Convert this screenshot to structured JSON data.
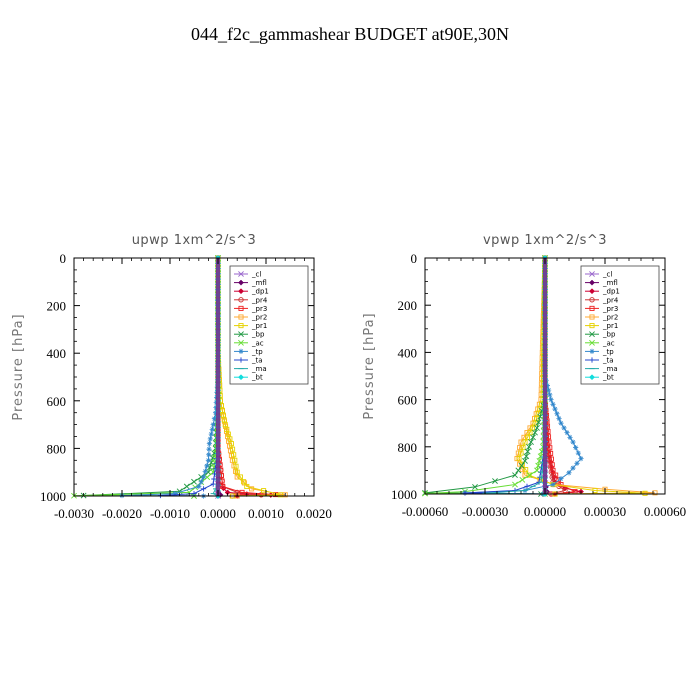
{
  "figure_title": "044_f2c_gammashear  BUDGET at90E,30N",
  "chart_data": [
    {
      "type": "line",
      "title": "upwp   1xm^2/s^3",
      "ylabel": "Pressure  [hPa]",
      "xlim": [
        -0.003,
        0.002
      ],
      "ylim": [
        0,
        1000
      ],
      "y_inverted": true,
      "x_ticks": [
        "-0.0030",
        "-0.0020",
        "-0.0010",
        "0.0000",
        "0.0010",
        "0.0020"
      ],
      "x_tick_values": [
        -0.003,
        -0.002,
        -0.001,
        0.0,
        0.001,
        0.002
      ],
      "y_ticks": [
        "0",
        "200",
        "400",
        "600",
        "800",
        "1000"
      ],
      "y_tick_values": [
        0,
        200,
        400,
        600,
        800,
        1000
      ],
      "legend_position": "upper-right",
      "series": [
        {
          "name": "_cl",
          "color": "#9966cc",
          "marker": "x",
          "points": [
            [
              0.0,
              0
            ],
            [
              0.0,
              200
            ],
            [
              0.0,
              400
            ],
            [
              0.0,
              600
            ],
            [
              0.0,
              800
            ],
            [
              0.0,
              950
            ],
            [
              0.0,
              1000
            ]
          ]
        },
        {
          "name": "_mfl",
          "color": "#660066",
          "marker": "diamond",
          "points": [
            [
              0.0,
              0
            ],
            [
              0.0,
              200
            ],
            [
              0.0,
              400
            ],
            [
              0.0,
              600
            ],
            [
              0.0,
              800
            ],
            [
              0.0,
              950
            ],
            [
              0.0,
              980
            ],
            [
              5e-05,
              995
            ],
            [
              0.0,
              1000
            ]
          ]
        },
        {
          "name": "_dp1",
          "color": "#cc0033",
          "marker": "diamond",
          "points": [
            [
              0.0,
              0
            ],
            [
              0.0,
              400
            ],
            [
              0.0,
              800
            ],
            [
              3e-05,
              950
            ],
            [
              0.0002,
              985
            ],
            [
              0.0006,
              992
            ],
            [
              0.0011,
              996
            ],
            [
              0.0004,
              1000
            ]
          ]
        },
        {
          "name": "_pr4",
          "color": "#cc3333",
          "marker": "circle",
          "points": [
            [
              0.0,
              0
            ],
            [
              0.0,
              400
            ],
            [
              0.0,
              800
            ],
            [
              0.0001,
              960
            ],
            [
              0.0004,
              985
            ],
            [
              0.0009,
              995
            ],
            [
              0.0003,
              1000
            ]
          ]
        },
        {
          "name": "_pr3",
          "color": "#ee2222",
          "marker": "square",
          "points": [
            [
              0.0,
              0
            ],
            [
              0.0,
              400
            ],
            [
              0.0,
              800
            ],
            [
              0.0001,
              960
            ],
            [
              0.0005,
              985
            ],
            [
              0.0012,
              994
            ],
            [
              0.0003,
              1000
            ]
          ]
        },
        {
          "name": "_pr2",
          "color": "#ffaa33",
          "marker": "square",
          "points": [
            [
              0.0,
              0
            ],
            [
              0.0,
              400
            ],
            [
              5e-05,
              600
            ],
            [
              0.0002,
              750
            ],
            [
              0.0003,
              850
            ],
            [
              0.0004,
              920
            ],
            [
              0.0007,
              970
            ],
            [
              0.0014,
              995
            ],
            [
              0.0004,
              1000
            ]
          ]
        },
        {
          "name": "_pr1",
          "color": "#e6d200",
          "marker": "square",
          "points": [
            [
              0.0,
              0
            ],
            [
              0.0,
              400
            ],
            [
              5e-05,
              600
            ],
            [
              0.00015,
              700
            ],
            [
              0.00028,
              780
            ],
            [
              0.00035,
              850
            ],
            [
              0.0004,
              900
            ],
            [
              0.0006,
              960
            ],
            [
              0.0013,
              995
            ],
            [
              0.0003,
              1000
            ]
          ]
        },
        {
          "name": "_bp",
          "color": "#229944",
          "marker": "x",
          "points": [
            [
              0.0,
              0
            ],
            [
              0.0,
              600
            ],
            [
              -5e-05,
              800
            ],
            [
              -0.0002,
              900
            ],
            [
              -0.0008,
              980
            ],
            [
              -0.0028,
              998
            ],
            [
              -0.0005,
              1000
            ]
          ]
        },
        {
          "name": "_ac",
          "color": "#66dd33",
          "marker": "x",
          "points": [
            [
              0.0,
              0
            ],
            [
              0.0,
              600
            ],
            [
              -2e-05,
              800
            ],
            [
              -0.0001,
              900
            ],
            [
              -0.0006,
              985
            ],
            [
              -0.003,
              999
            ],
            [
              -0.0005,
              1000
            ]
          ]
        },
        {
          "name": "_tp",
          "color": "#3388cc",
          "marker": "star",
          "points": [
            [
              0.0,
              0
            ],
            [
              0.0,
              500
            ],
            [
              -5e-05,
              650
            ],
            [
              -0.0001,
              700
            ],
            [
              -0.00018,
              780
            ],
            [
              -0.0002,
              850
            ],
            [
              -0.0003,
              920
            ],
            [
              -0.0004,
              960
            ],
            [
              -0.0009,
              990
            ],
            [
              -0.002,
              998
            ],
            [
              -0.0003,
              1000
            ]
          ]
        },
        {
          "name": "_ta",
          "color": "#2244cc",
          "marker": "plus",
          "points": [
            [
              0.0,
              0
            ],
            [
              0.0,
              800
            ],
            [
              -0.0001,
              950
            ],
            [
              -0.0005,
              990
            ],
            [
              -0.0012,
              998
            ],
            [
              0.0,
              1000
            ]
          ]
        },
        {
          "name": "_ma",
          "color": "#22aaaa",
          "marker": "dash",
          "points": [
            [
              0.0,
              0
            ],
            [
              0.0,
              800
            ],
            [
              0.0,
              950
            ],
            [
              -0.0001,
              990
            ],
            [
              0.0,
              1000
            ]
          ]
        },
        {
          "name": "_bt",
          "color": "#11dddd",
          "marker": "diamond",
          "points": [
            [
              0.0,
              0
            ],
            [
              0.0,
              400
            ],
            [
              0.0,
              800
            ],
            [
              0.0,
              1000
            ]
          ]
        }
      ]
    },
    {
      "type": "line",
      "title": "vpwp   1xm^2/s^3",
      "ylabel": "Pressure  [hPa]",
      "xlim": [
        -0.0006,
        0.0006
      ],
      "ylim": [
        0,
        1000
      ],
      "y_inverted": true,
      "x_ticks": [
        "-0.00060",
        "-0.00030",
        "0.00000",
        "0.00030",
        "0.00060"
      ],
      "x_tick_values": [
        -0.0006,
        -0.0003,
        0.0,
        0.0003,
        0.0006
      ],
      "y_ticks": [
        "0",
        "200",
        "400",
        "600",
        "800",
        "1000"
      ],
      "y_tick_values": [
        0,
        200,
        400,
        600,
        800,
        1000
      ],
      "legend_position": "upper-right",
      "series": [
        {
          "name": "_cl",
          "color": "#9966cc",
          "marker": "x",
          "points": [
            [
              0.0,
              0
            ],
            [
              0.0,
              400
            ],
            [
              0.0,
              800
            ],
            [
              0.0,
              1000
            ]
          ]
        },
        {
          "name": "_mfl",
          "color": "#660066",
          "marker": "diamond",
          "points": [
            [
              0.0,
              0
            ],
            [
              0.0,
              400
            ],
            [
              0.0,
              800
            ],
            [
              0.0,
              950
            ],
            [
              1e-05,
              990
            ],
            [
              0.0,
              1000
            ]
          ]
        },
        {
          "name": "_dp1",
          "color": "#cc0033",
          "marker": "diamond",
          "points": [
            [
              0.0,
              0
            ],
            [
              0.0,
              600
            ],
            [
              1e-05,
              800
            ],
            [
              5e-05,
              950
            ],
            [
              0.0001,
              975
            ],
            [
              0.00018,
              990
            ],
            [
              5e-05,
              1000
            ]
          ]
        },
        {
          "name": "_pr4",
          "color": "#cc3333",
          "marker": "circle",
          "points": [
            [
              0.0,
              0
            ],
            [
              0.0,
              600
            ],
            [
              1e-05,
              800
            ],
            [
              4e-05,
              950
            ],
            [
              0.0001,
              985
            ],
            [
              3e-05,
              1000
            ]
          ]
        },
        {
          "name": "_pr3",
          "color": "#ee2222",
          "marker": "square",
          "points": [
            [
              0.0,
              0
            ],
            [
              0.0,
              600
            ],
            [
              2e-05,
              780
            ],
            [
              4e-05,
              900
            ],
            [
              8e-05,
              960
            ],
            [
              0.00015,
              990
            ],
            [
              4e-05,
              1000
            ]
          ]
        },
        {
          "name": "_pr2",
          "color": "#ffaa33",
          "marker": "square",
          "points": [
            [
              0.0,
              0
            ],
            [
              -2e-05,
              600
            ],
            [
              -6e-05,
              700
            ],
            [
              -0.00012,
              780
            ],
            [
              -0.00014,
              850
            ],
            [
              -0.0001,
              920
            ],
            [
              5e-05,
              960
            ],
            [
              0.0003,
              980
            ],
            [
              0.00055,
              995
            ],
            [
              5e-05,
              1000
            ]
          ]
        },
        {
          "name": "_pr1",
          "color": "#e6d200",
          "marker": "square",
          "points": [
            [
              0.0,
              0
            ],
            [
              -1e-05,
              600
            ],
            [
              -5e-05,
              700
            ],
            [
              -0.0001,
              780
            ],
            [
              -0.00013,
              850
            ],
            [
              -8e-05,
              920
            ],
            [
              4e-05,
              960
            ],
            [
              0.00025,
              985
            ],
            [
              0.0005,
              997
            ],
            [
              5e-05,
              1000
            ]
          ]
        },
        {
          "name": "_bp",
          "color": "#229944",
          "marker": "x",
          "points": [
            [
              0.0,
              0
            ],
            [
              0.0,
              600
            ],
            [
              -4e-05,
              720
            ],
            [
              -8e-05,
              800
            ],
            [
              -0.0001,
              860
            ],
            [
              -0.00015,
              920
            ],
            [
              -0.00035,
              970
            ],
            [
              -0.0006,
              995
            ],
            [
              -2e-05,
              1000
            ]
          ]
        },
        {
          "name": "_ac",
          "color": "#66dd33",
          "marker": "x",
          "points": [
            [
              0.0,
              0
            ],
            [
              0.0,
              600
            ],
            [
              -1e-05,
              800
            ],
            [
              -4e-05,
              900
            ],
            [
              -0.00015,
              960
            ],
            [
              -0.0004,
              990
            ],
            [
              -0.0006,
              998
            ],
            [
              0.0,
              1000
            ]
          ]
        },
        {
          "name": "_tp",
          "color": "#3388cc",
          "marker": "star",
          "points": [
            [
              0.0,
              0
            ],
            [
              0.0,
              500
            ],
            [
              3e-05,
              600
            ],
            [
              8e-05,
              700
            ],
            [
              0.00014,
              780
            ],
            [
              0.00018,
              850
            ],
            [
              0.00012,
              910
            ],
            [
              4e-05,
              960
            ],
            [
              -0.0001,
              985
            ],
            [
              -0.0004,
              995
            ],
            [
              -1e-05,
              1000
            ]
          ]
        },
        {
          "name": "_ta",
          "color": "#2244cc",
          "marker": "plus",
          "points": [
            [
              0.0,
              0
            ],
            [
              0.0,
              800
            ],
            [
              -3e-05,
              950
            ],
            [
              -0.00015,
              985
            ],
            [
              -0.0004,
              996
            ],
            [
              0.0,
              1000
            ]
          ]
        },
        {
          "name": "_ma",
          "color": "#22aaaa",
          "marker": "dash",
          "points": [
            [
              0.0,
              0
            ],
            [
              0.0,
              800
            ],
            [
              -2e-05,
              950
            ],
            [
              -0.0001,
              985
            ],
            [
              -0.0003,
              997
            ],
            [
              0.0,
              1000
            ]
          ]
        },
        {
          "name": "_bt",
          "color": "#11dddd",
          "marker": "diamond",
          "points": [
            [
              0.0,
              0
            ],
            [
              0.0,
              400
            ],
            [
              0.0,
              800
            ],
            [
              0.0,
              1000
            ]
          ]
        }
      ]
    }
  ]
}
